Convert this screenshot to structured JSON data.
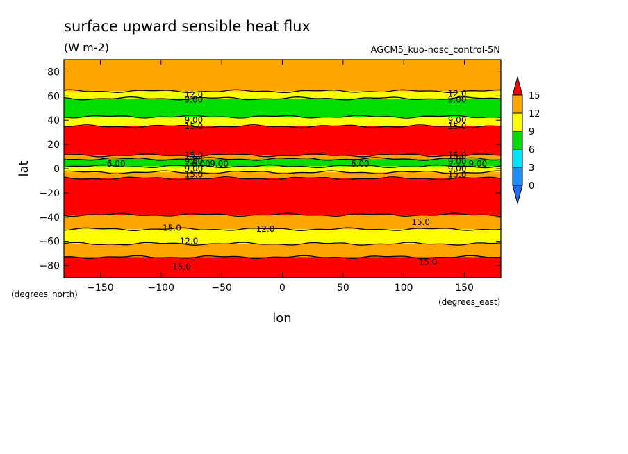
{
  "chart_data": {
    "type": "heatmap",
    "subtype": "filled-contour",
    "title": "surface upward sensible heat flux",
    "units": "(W m-2)",
    "run_label": "AGCM5_kuo-nosc_control-5N",
    "xlabel": "lon",
    "ylabel": "lat",
    "x_units": "(degrees_east)",
    "y_units": "(degrees_north)",
    "xlim": [
      -180,
      180
    ],
    "ylim": [
      -90,
      90
    ],
    "xticks": [
      -150,
      -100,
      -50,
      0,
      50,
      100,
      150
    ],
    "yticks": [
      -80,
      -60,
      -40,
      -20,
      0,
      20,
      40,
      60,
      80
    ],
    "xtick_labels": [
      "−150",
      "−100",
      "−50",
      "0",
      "50",
      "100",
      "150"
    ],
    "ytick_labels": [
      "−80",
      "−60",
      "−40",
      "−20",
      "0",
      "20",
      "40",
      "60",
      "80"
    ],
    "grid": false,
    "colorbar": {
      "levels": [
        0,
        3,
        6,
        9,
        12,
        15
      ],
      "labels": [
        "0",
        "3",
        "6",
        "9",
        "12",
        "15"
      ],
      "colors": [
        "#1e90ff",
        "#00e5ff",
        "#00dd00",
        "#ffff00",
        "#ffa500",
        "#ff0000"
      ],
      "under_color": "#1e6fff",
      "over_color": "#ff0000"
    },
    "zonal_bands": [
      {
        "lat_from": 90,
        "lat_to": 64,
        "value": "12-15"
      },
      {
        "lat_from": 64,
        "lat_to": 58,
        "value": "9-12"
      },
      {
        "lat_from": 58,
        "lat_to": 43,
        "value": "6-9"
      },
      {
        "lat_from": 43,
        "lat_to": 35,
        "value": "9-12"
      },
      {
        "lat_from": 35,
        "lat_to": 11,
        "value": ">15"
      },
      {
        "lat_from": 11,
        "lat_to": 8,
        "value": "12-15"
      },
      {
        "lat_from": 8,
        "lat_to": 2,
        "value": "6-9"
      },
      {
        "lat_from": 2,
        "lat_to": -3,
        "value": "9-12"
      },
      {
        "lat_from": -3,
        "lat_to": -8,
        "value": "12-15"
      },
      {
        "lat_from": -8,
        "lat_to": -38,
        "value": ">15"
      },
      {
        "lat_from": -38,
        "lat_to": -50,
        "value": "12-15"
      },
      {
        "lat_from": -50,
        "lat_to": -62,
        "value": "9-12"
      },
      {
        "lat_from": -62,
        "lat_to": -73,
        "value": "12-15"
      },
      {
        "lat_from": -73,
        "lat_to": -90,
        "value": ">15"
      }
    ],
    "contour_labels": [
      {
        "text": "12.0",
        "lon": -73,
        "lat": 61
      },
      {
        "text": "9.00",
        "lon": -73,
        "lat": 57
      },
      {
        "text": "9.00",
        "lon": -73,
        "lat": 40
      },
      {
        "text": "15.0",
        "lon": -73,
        "lat": 35
      },
      {
        "text": "12.0",
        "lon": 144,
        "lat": 62
      },
      {
        "text": "9.00",
        "lon": 144,
        "lat": 57
      },
      {
        "text": "9.00",
        "lon": 144,
        "lat": 40
      },
      {
        "text": "15.0",
        "lon": 144,
        "lat": 35
      },
      {
        "text": "15.0",
        "lon": -73,
        "lat": 11
      },
      {
        "text": "9.00",
        "lon": -73,
        "lat": 6
      },
      {
        "text": "6.00",
        "lon": -67,
        "lat": 4
      },
      {
        "text": "9.00",
        "lon": -52,
        "lat": 4
      },
      {
        "text": "9.00",
        "lon": -73,
        "lat": 0
      },
      {
        "text": "15.0",
        "lon": -73,
        "lat": -5
      },
      {
        "text": "6.00",
        "lon": -137,
        "lat": 4
      },
      {
        "text": "6.00",
        "lon": 64,
        "lat": 4
      },
      {
        "text": "15.0",
        "lon": 144,
        "lat": 11
      },
      {
        "text": "9.00",
        "lon": 144,
        "lat": 6
      },
      {
        "text": "9.00",
        "lon": 161,
        "lat": 4
      },
      {
        "text": "9.00",
        "lon": 144,
        "lat": 0
      },
      {
        "text": "15.0",
        "lon": 144,
        "lat": -5
      },
      {
        "text": "15.0",
        "lon": -91,
        "lat": -49
      },
      {
        "text": "12.0",
        "lon": -14,
        "lat": -50
      },
      {
        "text": "15.0",
        "lon": 114,
        "lat": -44
      },
      {
        "text": "12.0",
        "lon": -77,
        "lat": -60
      },
      {
        "text": "15.0",
        "lon": -83,
        "lat": -81
      },
      {
        "text": "15.0",
        "lon": 120,
        "lat": -77
      }
    ]
  }
}
